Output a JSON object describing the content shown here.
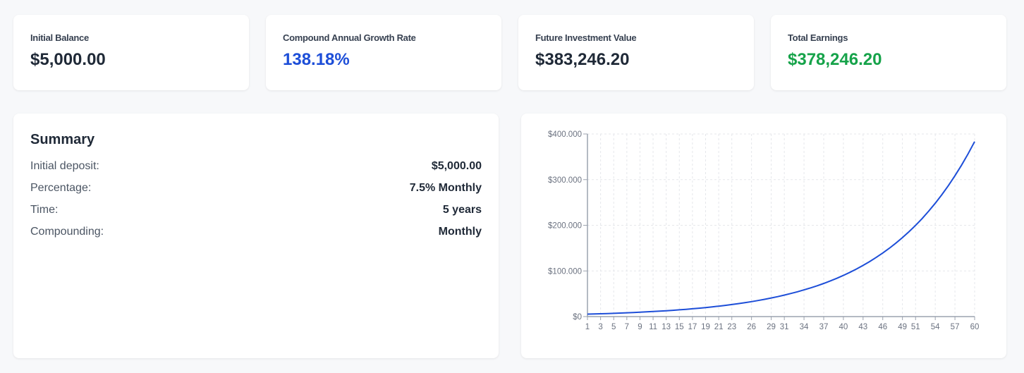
{
  "stats": [
    {
      "label": "Initial Balance",
      "value": "$5,000.00"
    },
    {
      "label": "Compound Annual Growth Rate",
      "value": "138.18%"
    },
    {
      "label": "Future Investment Value",
      "value": "$383,246.20"
    },
    {
      "label": "Total Earnings",
      "value": "$378,246.20"
    }
  ],
  "colors": {
    "accent": "#1d4ed8",
    "positive": "#16a34a"
  },
  "summary": {
    "title": "Summary",
    "rows": [
      {
        "label": "Initial deposit:",
        "value": "$5,000.00"
      },
      {
        "label": "Percentage:",
        "value": "7.5% Monthly"
      },
      {
        "label": "Time:",
        "value": "5 years"
      },
      {
        "label": "Compounding:",
        "value": "Monthly"
      }
    ]
  },
  "chart_data": {
    "type": "line",
    "x": [
      1,
      2,
      3,
      4,
      5,
      6,
      7,
      8,
      9,
      10,
      11,
      12,
      13,
      14,
      15,
      16,
      17,
      18,
      19,
      20,
      21,
      22,
      23,
      24,
      25,
      26,
      27,
      28,
      29,
      30,
      31,
      32,
      33,
      34,
      35,
      36,
      37,
      38,
      39,
      40,
      41,
      42,
      43,
      44,
      45,
      46,
      47,
      48,
      49,
      50,
      51,
      52,
      53,
      54,
      55,
      56,
      57,
      58,
      59,
      60
    ],
    "values": [
      5375,
      5778,
      6211,
      6677,
      7178,
      7717,
      8295,
      8917,
      9586,
      10305,
      11078,
      11909,
      12802,
      13762,
      14794,
      15904,
      17097,
      18379,
      19757,
      21239,
      22832,
      24545,
      26385,
      28364,
      30492,
      32779,
      35237,
      37880,
      40721,
      43775,
      47058,
      50587,
      54381,
      58460,
      62844,
      67558,
      72625,
      78071,
      83927,
      90221,
      96988,
      104262,
      112082,
      120488,
      129524,
      139239,
      149681,
      160907,
      172976,
      185949,
      199895,
      214888,
      231005,
      248330,
      266955,
      286976,
      308500,
      331637,
      356510,
      383246
    ],
    "x_tick_labels": [
      "1",
      "3",
      "5",
      "7",
      "9",
      "11",
      "13",
      "15",
      "17",
      "19",
      "21",
      "23",
      "26",
      "29",
      "31",
      "34",
      "37",
      "40",
      "43",
      "46",
      "49",
      "51",
      "54",
      "57",
      "60"
    ],
    "y_ticks": [
      0,
      100000,
      200000,
      300000,
      400000
    ],
    "y_tick_labels": [
      "$0",
      "$100.000",
      "$200.000",
      "$300.000",
      "$400.000"
    ],
    "ylim": [
      0,
      400000
    ],
    "grid": true,
    "line_color": "#1d4ed8",
    "title": "",
    "xlabel": "",
    "ylabel": ""
  }
}
